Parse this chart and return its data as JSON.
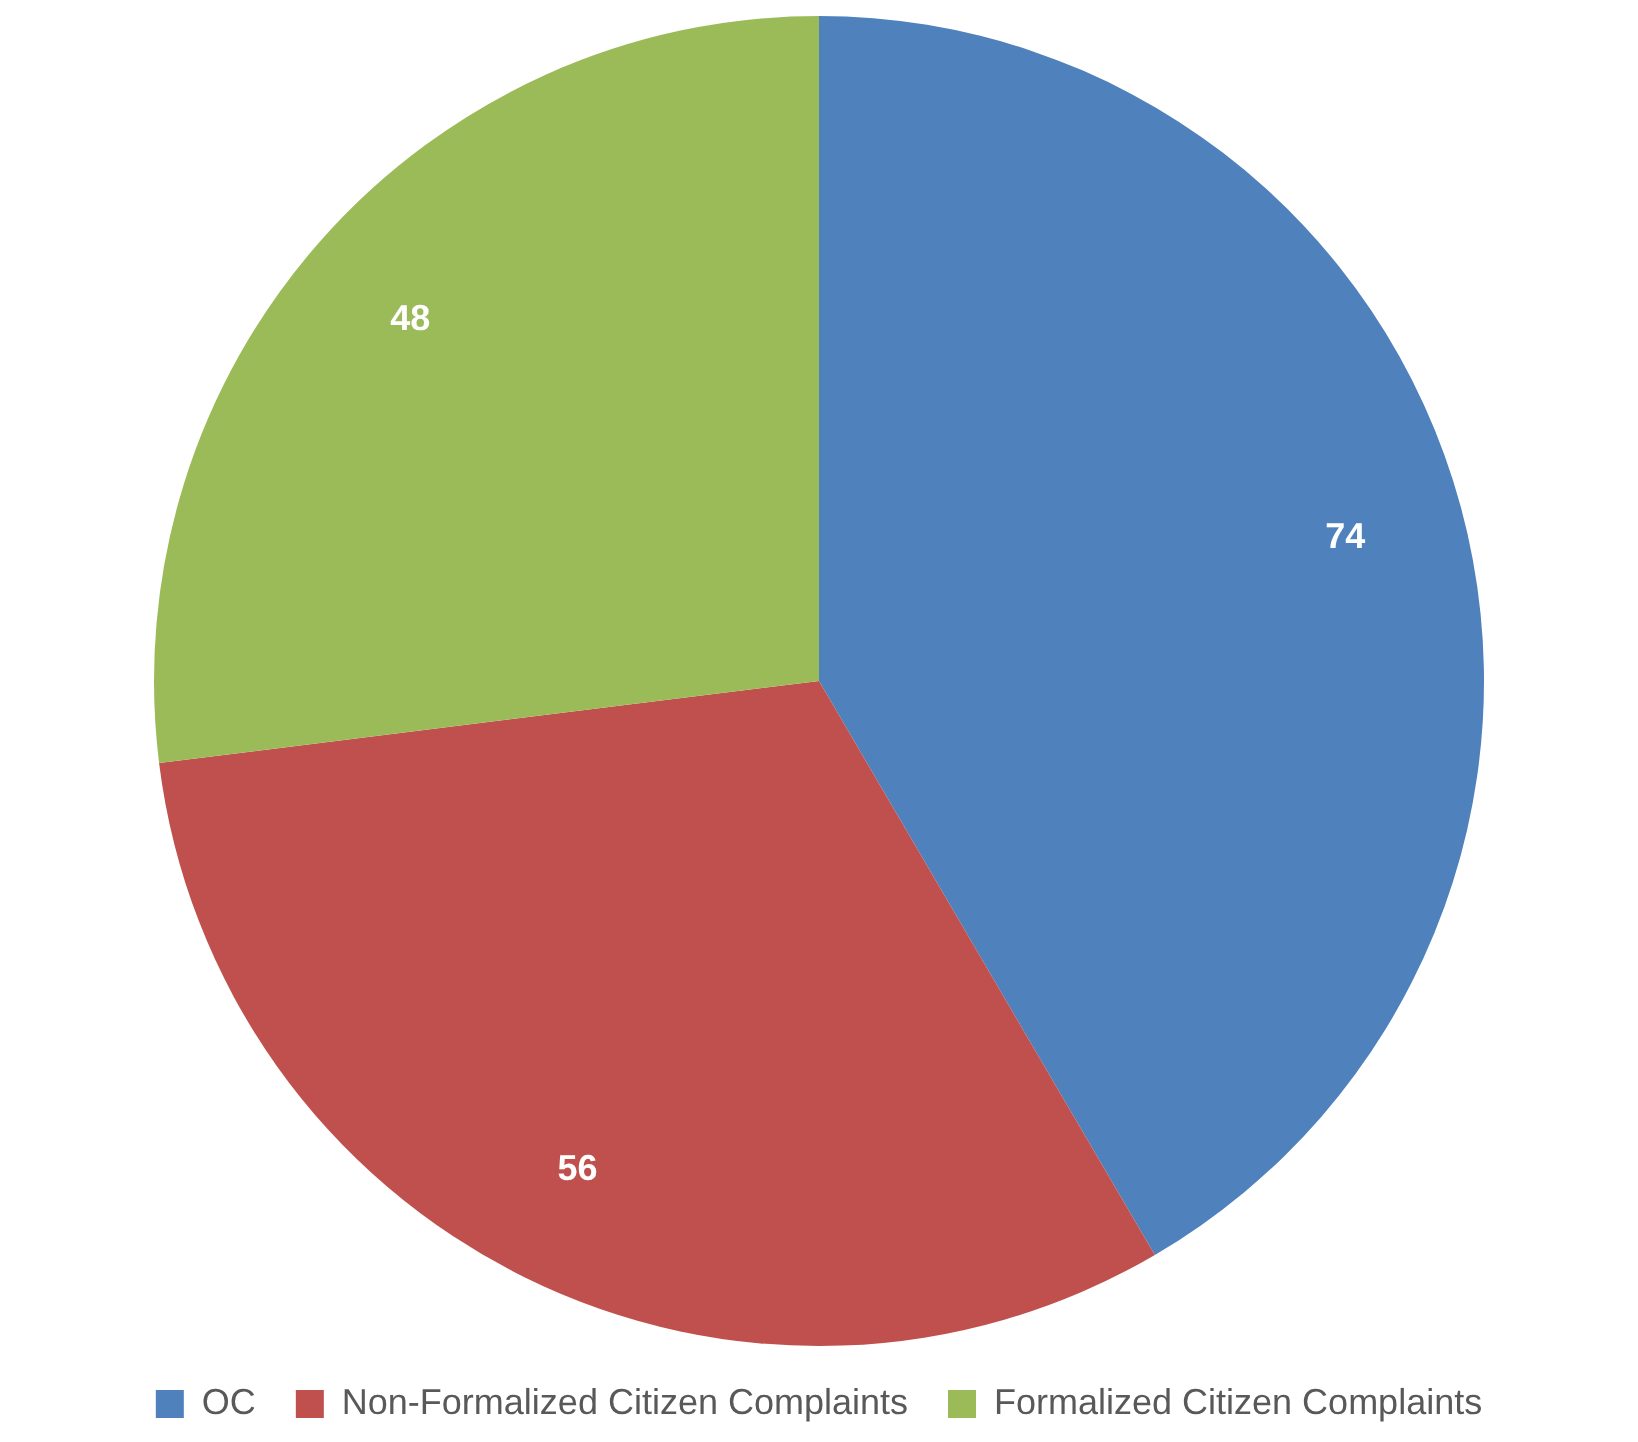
{
  "chart_data": {
    "type": "pie",
    "categories": [
      "OC",
      "Non-Formalized Citizen Complaints",
      "Formalized Citizen Complaints"
    ],
    "values": [
      74,
      56,
      48
    ],
    "colors": [
      "#4f81bd",
      "#c0504d",
      "#9bbb59"
    ],
    "data_labels": true,
    "legend": "bottom"
  }
}
